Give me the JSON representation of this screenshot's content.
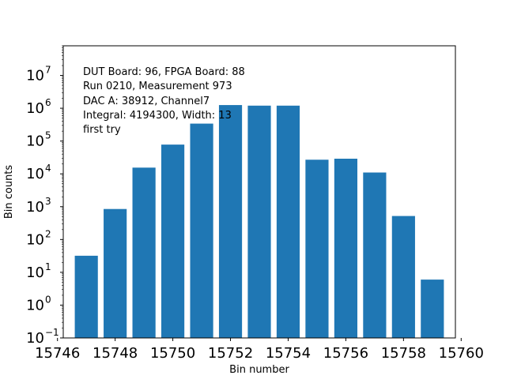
{
  "chart_data": {
    "type": "bar",
    "x": [
      15747,
      15748,
      15749,
      15750,
      15751,
      15752,
      15753,
      15754,
      15755,
      15756,
      15757,
      15758,
      15759
    ],
    "values": [
      32,
      850,
      15500,
      78000,
      340000,
      1250000,
      1200000,
      1200000,
      27000,
      29000,
      11000,
      520,
      6
    ],
    "bar_color": "#1f77b4",
    "xlabel": "Bin number",
    "ylabel": "Bin counts",
    "xlim": [
      15746.2,
      15759.8
    ],
    "ylim": [
      0.1,
      80000000
    ],
    "y_scale": "log",
    "xticks": [
      "15746",
      "15748",
      "15750",
      "15752",
      "15754",
      "15756",
      "15758",
      "15760"
    ],
    "ytick_exponents": [
      "−1",
      "0",
      "1",
      "2",
      "3",
      "4",
      "5",
      "6",
      "7"
    ],
    "annotation_lines": [
      "DUT Board: 96, FPGA Board: 88",
      "Run 0210, Measurement 973",
      "DAC A: 38912, Channel7",
      "Integral: 4194300, Width: 13",
      "first try"
    ]
  }
}
